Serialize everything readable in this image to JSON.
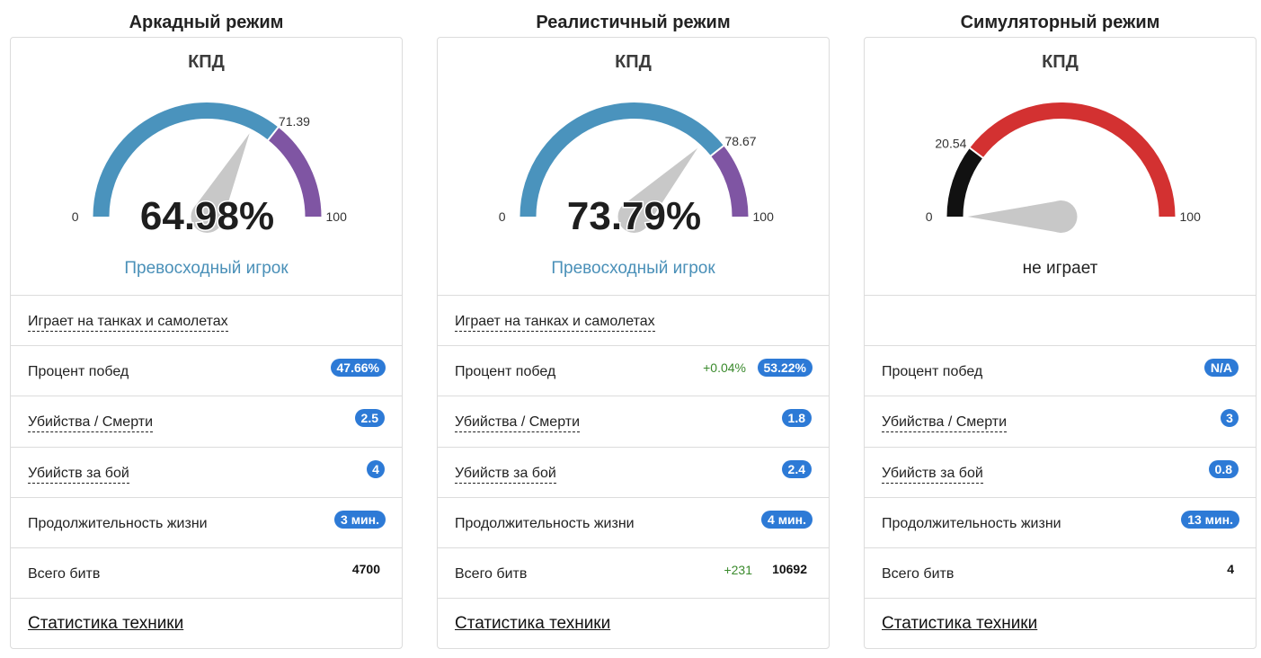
{
  "modes": [
    {
      "title": "Аркадный режим",
      "gauge": {
        "label": "КПД",
        "min": "0",
        "max": "100",
        "min_value": 0,
        "max_value": 100,
        "marker": 71.39,
        "marker_label": "71.39",
        "value": 64.98,
        "value_label": "64.98%",
        "color_low": "#4a93bd",
        "color_high": "#7f55a3"
      },
      "rating": "Превосходный игрок",
      "vehicles": "Играет на танках и самолетах",
      "win_rate": {
        "label": "Процент побед",
        "value": "47.66%",
        "delta": ""
      },
      "kd": {
        "label": "Убийства / Смерти",
        "value": "2.5"
      },
      "kills_per_battle": {
        "label": "Убийств за бой",
        "value": "4"
      },
      "lifespan": {
        "label": "Продолжительность жизни",
        "value": "3 мин."
      },
      "battles": {
        "label": "Всего битв",
        "value": "4700",
        "delta": ""
      },
      "tech_link": "Статистика техники"
    },
    {
      "title": "Реалистичный режим",
      "gauge": {
        "label": "КПД",
        "min": "0",
        "max": "100",
        "min_value": 0,
        "max_value": 100,
        "marker": 78.67,
        "marker_label": "78.67",
        "value": 73.79,
        "value_label": "73.79%",
        "color_low": "#4a93bd",
        "color_high": "#7f55a3"
      },
      "rating": "Превосходный игрок",
      "vehicles": "Играет на танках и самолетах",
      "win_rate": {
        "label": "Процент побед",
        "value": "53.22%",
        "delta": "+0.04%"
      },
      "kd": {
        "label": "Убийства / Смерти",
        "value": "1.8"
      },
      "kills_per_battle": {
        "label": "Убийств за бой",
        "value": "2.4"
      },
      "lifespan": {
        "label": "Продолжительность жизни",
        "value": "4 мин."
      },
      "battles": {
        "label": "Всего битв",
        "value": "10692",
        "delta": "+231"
      },
      "tech_link": "Статистика техники"
    },
    {
      "title": "Симуляторный режим",
      "gauge": {
        "label": "КПД",
        "min": "0",
        "max": "100",
        "min_value": 0,
        "max_value": 100,
        "marker": 20.54,
        "marker_label": "20.54",
        "value": 0,
        "value_label": "",
        "color_low": "#111111",
        "color_high": "#d33131"
      },
      "rating": "не играет",
      "vehicles": "",
      "win_rate": {
        "label": "Процент побед",
        "value": "N/A",
        "delta": ""
      },
      "kd": {
        "label": "Убийства / Смерти",
        "value": "3"
      },
      "kills_per_battle": {
        "label": "Убийств за бой",
        "value": "0.8"
      },
      "lifespan": {
        "label": "Продолжительность жизни",
        "value": "13 мин."
      },
      "battles": {
        "label": "Всего битв",
        "value": "4",
        "delta": ""
      },
      "tech_link": "Статистика техники"
    }
  ],
  "colors": {
    "needle": "#c8c8c8",
    "badge": "#2d7ad6",
    "rating_good": "#4a90b8",
    "delta_positive": "#3a8a2c"
  }
}
